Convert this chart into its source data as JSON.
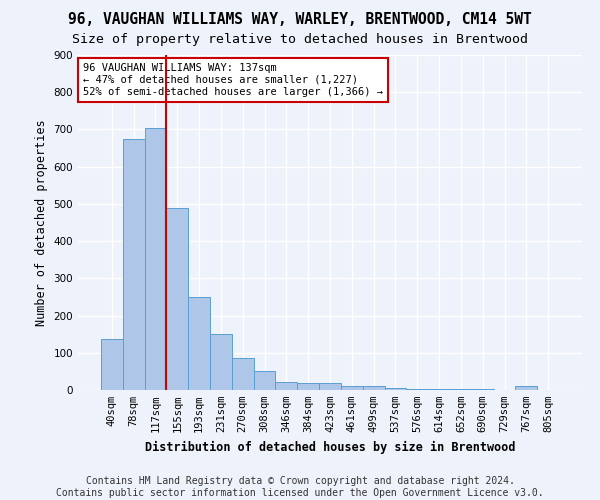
{
  "title1": "96, VAUGHAN WILLIAMS WAY, WARLEY, BRENTWOOD, CM14 5WT",
  "title2": "Size of property relative to detached houses in Brentwood",
  "xlabel": "Distribution of detached houses by size in Brentwood",
  "ylabel": "Number of detached properties",
  "footer1": "Contains HM Land Registry data © Crown copyright and database right 2024.",
  "footer2": "Contains public sector information licensed under the Open Government Licence v3.0.",
  "bin_labels": [
    "40sqm",
    "78sqm",
    "117sqm",
    "155sqm",
    "193sqm",
    "231sqm",
    "270sqm",
    "308sqm",
    "346sqm",
    "384sqm",
    "423sqm",
    "461sqm",
    "499sqm",
    "537sqm",
    "576sqm",
    "614sqm",
    "652sqm",
    "690sqm",
    "729sqm",
    "767sqm",
    "805sqm"
  ],
  "bar_values": [
    137,
    675,
    705,
    490,
    250,
    150,
    87,
    50,
    22,
    20,
    18,
    12,
    10,
    5,
    3,
    2,
    2,
    2,
    0,
    10,
    0
  ],
  "bar_color": "#aec6e8",
  "bar_edge_color": "#5a9fd4",
  "vline_x": 2.5,
  "vline_color": "#cc0000",
  "annotation_text": "96 VAUGHAN WILLIAMS WAY: 137sqm\n← 47% of detached houses are smaller (1,227)\n52% of semi-detached houses are larger (1,366) →",
  "annotation_box_color": "#ffffff",
  "annotation_box_edge": "#cc0000",
  "ylim": [
    0,
    900
  ],
  "yticks": [
    0,
    100,
    200,
    300,
    400,
    500,
    600,
    700,
    800,
    900
  ],
  "background_color": "#eef2fa",
  "plot_background": "#eef2fa",
  "grid_color": "#ffffff",
  "title_fontsize": 10.5,
  "subtitle_fontsize": 9.5,
  "axis_label_fontsize": 8.5,
  "tick_fontsize": 7.5,
  "footer_fontsize": 7.0
}
